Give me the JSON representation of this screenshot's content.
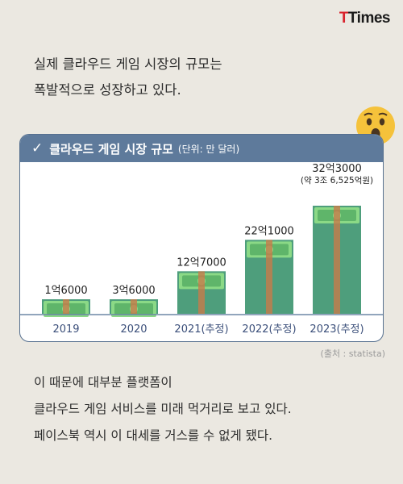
{
  "logo": {
    "t": "T",
    "rest": "Times"
  },
  "intro": [
    "실제 클라우드 게임 시장의 규모는",
    "폭발적으로 성장하고 있다."
  ],
  "chart_header": {
    "check": "✓",
    "title": "클라우드 게임 시장 규모",
    "unit": "(단위: 만 달러)"
  },
  "source": "(출처 : statista)",
  "outro": [
    "이 때문에 대부분 플랫폼이",
    "클라우드 게임 서비스를 미래 먹거리로 보고 있다.",
    "페이스북 역시 이 대세를 거스를 수 없게 됐다."
  ],
  "colors": {
    "bar": "#4e9e7c",
    "note_light": "#8bd986",
    "note_dark": "#5fb56a",
    "band": "#c77a4a",
    "header": "#5e7a9b",
    "axis_text": "#3b4f7a",
    "emoji": "#f5c23b"
  },
  "chart_data": {
    "type": "bar",
    "categories": [
      "2019",
      "2020",
      "2021(추정)",
      "2022(추정)",
      "2023(추정)"
    ],
    "values": [
      16000,
      36000,
      127000,
      221000,
      323000
    ],
    "value_labels": [
      "1억6000",
      "3억6000",
      "12억7000",
      "22억1000",
      "32억3000"
    ],
    "extra_label": "(약 3조 6,525억원)",
    "title": "클라우드 게임 시장 규모",
    "unit": "(단위: 만 달러)"
  }
}
